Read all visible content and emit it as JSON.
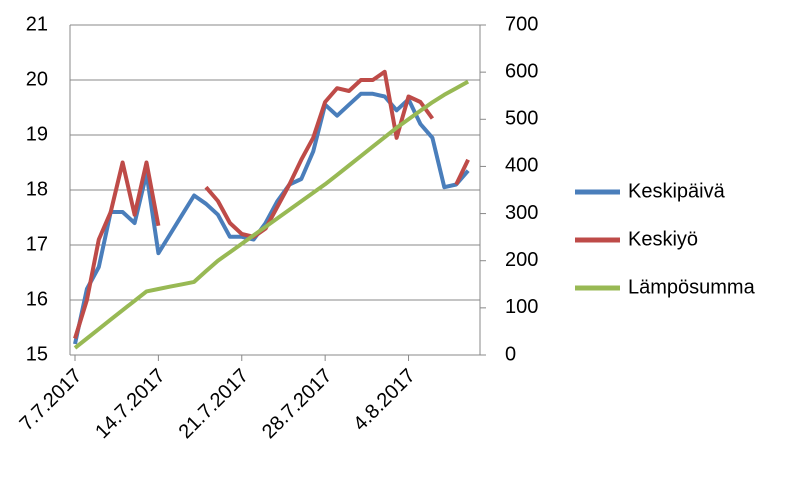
{
  "chart_data": {
    "type": "line",
    "x": [
      "2017-07-07",
      "2017-07-08",
      "2017-07-09",
      "2017-07-10",
      "2017-07-11",
      "2017-07-12",
      "2017-07-13",
      "2017-07-14",
      "2017-07-15",
      "2017-07-16",
      "2017-07-17",
      "2017-07-18",
      "2017-07-19",
      "2017-07-20",
      "2017-07-21",
      "2017-07-22",
      "2017-07-23",
      "2017-07-24",
      "2017-07-25",
      "2017-07-26",
      "2017-07-27",
      "2017-07-28",
      "2017-07-29",
      "2017-07-30",
      "2017-07-31",
      "2017-08-01",
      "2017-08-02",
      "2017-08-03",
      "2017-08-04",
      "2017-08-05",
      "2017-08-06",
      "2017-08-07",
      "2017-08-08",
      "2017-08-09"
    ],
    "series": [
      {
        "name": "Keskipäivä",
        "color": "#4a7ebb",
        "values": [
          15.2,
          16.2,
          16.6,
          17.6,
          17.6,
          17.4,
          18.3,
          16.85,
          17.2,
          17.55,
          17.9,
          17.75,
          17.55,
          17.15,
          17.15,
          17.1,
          17.4,
          17.8,
          18.1,
          18.2,
          18.7,
          19.55,
          19.35,
          19.55,
          19.75,
          19.75,
          19.7,
          19.45,
          19.65,
          19.2,
          18.95,
          18.05,
          18.1,
          18.35
        ]
      },
      {
        "name": "Keskiyö",
        "color": "#be4b48",
        "values": [
          15.3,
          16.0,
          17.1,
          17.6,
          18.5,
          17.55,
          18.5,
          17.35,
          null,
          null,
          null,
          18.05,
          17.8,
          17.4,
          17.2,
          17.15,
          17.3,
          17.7,
          18.1,
          18.55,
          18.95,
          19.6,
          19.85,
          19.8,
          20.0,
          20.0,
          20.15,
          18.95,
          19.7,
          19.6,
          19.3,
          null,
          18.1,
          18.55
        ]
      },
      {
        "name": "Lämpösumma",
        "color": "#98b954",
        "axis": "y2",
        "values": [
          15,
          35,
          55,
          75,
          95,
          115,
          135,
          140,
          145,
          150,
          155,
          178,
          200,
          218,
          236,
          254,
          272,
          290,
          308,
          326,
          344,
          362,
          382,
          402,
          422,
          442,
          462,
          482,
          500,
          518,
          536,
          552,
          566,
          580
        ]
      }
    ],
    "xlim": [
      "2017-07-07",
      "2017-08-10"
    ],
    "xticks": [
      {
        "value": "2017-07-07",
        "label": "7.7.2017"
      },
      {
        "value": "2017-07-14",
        "label": "14.7.2017"
      },
      {
        "value": "2017-07-21",
        "label": "21.7.2017"
      },
      {
        "value": "2017-07-28",
        "label": "28.7.2017"
      },
      {
        "value": "2017-08-04",
        "label": "4.8.2017"
      }
    ],
    "ylim": [
      15,
      21
    ],
    "yticks": [
      15,
      16,
      17,
      18,
      19,
      20,
      21
    ],
    "y2lim": [
      0,
      700
    ],
    "y2ticks": [
      0,
      100,
      200,
      300,
      400,
      500,
      600,
      700
    ],
    "grid": true,
    "legend": "right"
  }
}
